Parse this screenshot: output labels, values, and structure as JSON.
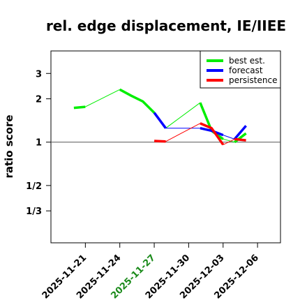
{
  "chart_data": {
    "type": "line",
    "title": "rel. edge displacement, IE/IIEE",
    "xlabel": "",
    "ylabel": "ratio score",
    "x_ticks": [
      {
        "label": "2025-11-21",
        "day": "2025-11-21",
        "color": "#000000"
      },
      {
        "label": "2025-11-24",
        "day": "2025-11-24",
        "color": "#000000"
      },
      {
        "label": "2025-11-27",
        "day": "2025-11-27",
        "color": "#1a8a1a"
      },
      {
        "label": "2025-11-30",
        "day": "2025-11-30",
        "color": "#000000"
      },
      {
        "label": "2025-12-03",
        "day": "2025-12-03",
        "color": "#000000"
      },
      {
        "label": "2025-12-06",
        "day": "2025-12-06",
        "color": "#000000"
      }
    ],
    "y_ticks": [
      {
        "label": "1/3",
        "value": 0.3333
      },
      {
        "label": "1/2",
        "value": 0.5
      },
      {
        "label": "1",
        "value": 1
      },
      {
        "label": "2",
        "value": 2
      },
      {
        "label": "3",
        "value": 3
      }
    ],
    "xlim": [
      "2025-11-18",
      "2025-12-08"
    ],
    "ylim": [
      0.2,
      4.3
    ],
    "y_scale": "log",
    "reference_line": 1,
    "legend_position": "top-right",
    "series": [
      {
        "name": "best est.",
        "color": "#00ee00",
        "segments": [
          {
            "points": [
              [
                "2025-11-20",
                1.73
              ],
              [
                "2025-11-21",
                1.76
              ]
            ],
            "width": 3.5
          },
          {
            "points": [
              [
                "2025-11-21",
                1.76
              ],
              [
                "2025-11-24",
                2.32
              ]
            ],
            "width": 1
          },
          {
            "points": [
              [
                "2025-11-24",
                2.32
              ],
              [
                "2025-11-25",
                2.1
              ],
              [
                "2025-11-26",
                1.92
              ],
              [
                "2025-11-27",
                1.6
              ]
            ],
            "width": 3.5
          },
          {
            "points": [
              [
                "2025-11-27",
                1.6
              ],
              [
                "2025-11-28",
                1.25
              ]
            ],
            "width": 1
          },
          {
            "points": [
              [
                "2025-11-28",
                1.25
              ],
              [
                "2025-12-01",
                1.88
              ]
            ],
            "width": 1
          },
          {
            "points": [
              [
                "2025-12-01",
                1.88
              ],
              [
                "2025-12-02",
                1.2
              ],
              [
                "2025-12-03",
                1.05
              ]
            ],
            "width": 3.5
          },
          {
            "points": [
              [
                "2025-12-03",
                1.05
              ],
              [
                "2025-12-04",
                1.0
              ]
            ],
            "width": 1
          },
          {
            "points": [
              [
                "2025-12-04",
                1.0
              ],
              [
                "2025-12-05",
                1.15
              ]
            ],
            "width": 3.5
          }
        ]
      },
      {
        "name": "forecast",
        "color": "#0000ff",
        "segments": [
          {
            "points": [
              [
                "2025-11-27",
                1.6
              ],
              [
                "2025-11-28",
                1.25
              ]
            ],
            "width": 3.5
          },
          {
            "points": [
              [
                "2025-11-28",
                1.25
              ],
              [
                "2025-12-01",
                1.25
              ]
            ],
            "width": 1
          },
          {
            "points": [
              [
                "2025-12-01",
                1.25
              ],
              [
                "2025-12-02",
                1.2
              ],
              [
                "2025-12-03",
                1.12
              ]
            ],
            "width": 3.5
          },
          {
            "points": [
              [
                "2025-12-03",
                1.12
              ],
              [
                "2025-12-04",
                1.05
              ]
            ],
            "width": 1
          },
          {
            "points": [
              [
                "2025-12-04",
                1.05
              ],
              [
                "2025-12-05",
                1.3
              ]
            ],
            "width": 3.5
          }
        ]
      },
      {
        "name": "persistence",
        "color": "#ff0000",
        "segments": [
          {
            "points": [
              [
                "2025-11-27",
                1.02
              ],
              [
                "2025-11-28",
                1.01
              ]
            ],
            "width": 3.5
          },
          {
            "points": [
              [
                "2025-11-28",
                1.01
              ],
              [
                "2025-12-01",
                1.35
              ]
            ],
            "width": 1
          },
          {
            "points": [
              [
                "2025-12-01",
                1.35
              ],
              [
                "2025-12-02",
                1.25
              ],
              [
                "2025-12-03",
                0.96
              ]
            ],
            "width": 3.5
          },
          {
            "points": [
              [
                "2025-12-03",
                0.96
              ],
              [
                "2025-12-04",
                1.05
              ]
            ],
            "width": 1
          },
          {
            "points": [
              [
                "2025-12-04",
                1.05
              ],
              [
                "2025-12-05",
                1.03
              ]
            ],
            "width": 3.5
          }
        ]
      }
    ]
  }
}
